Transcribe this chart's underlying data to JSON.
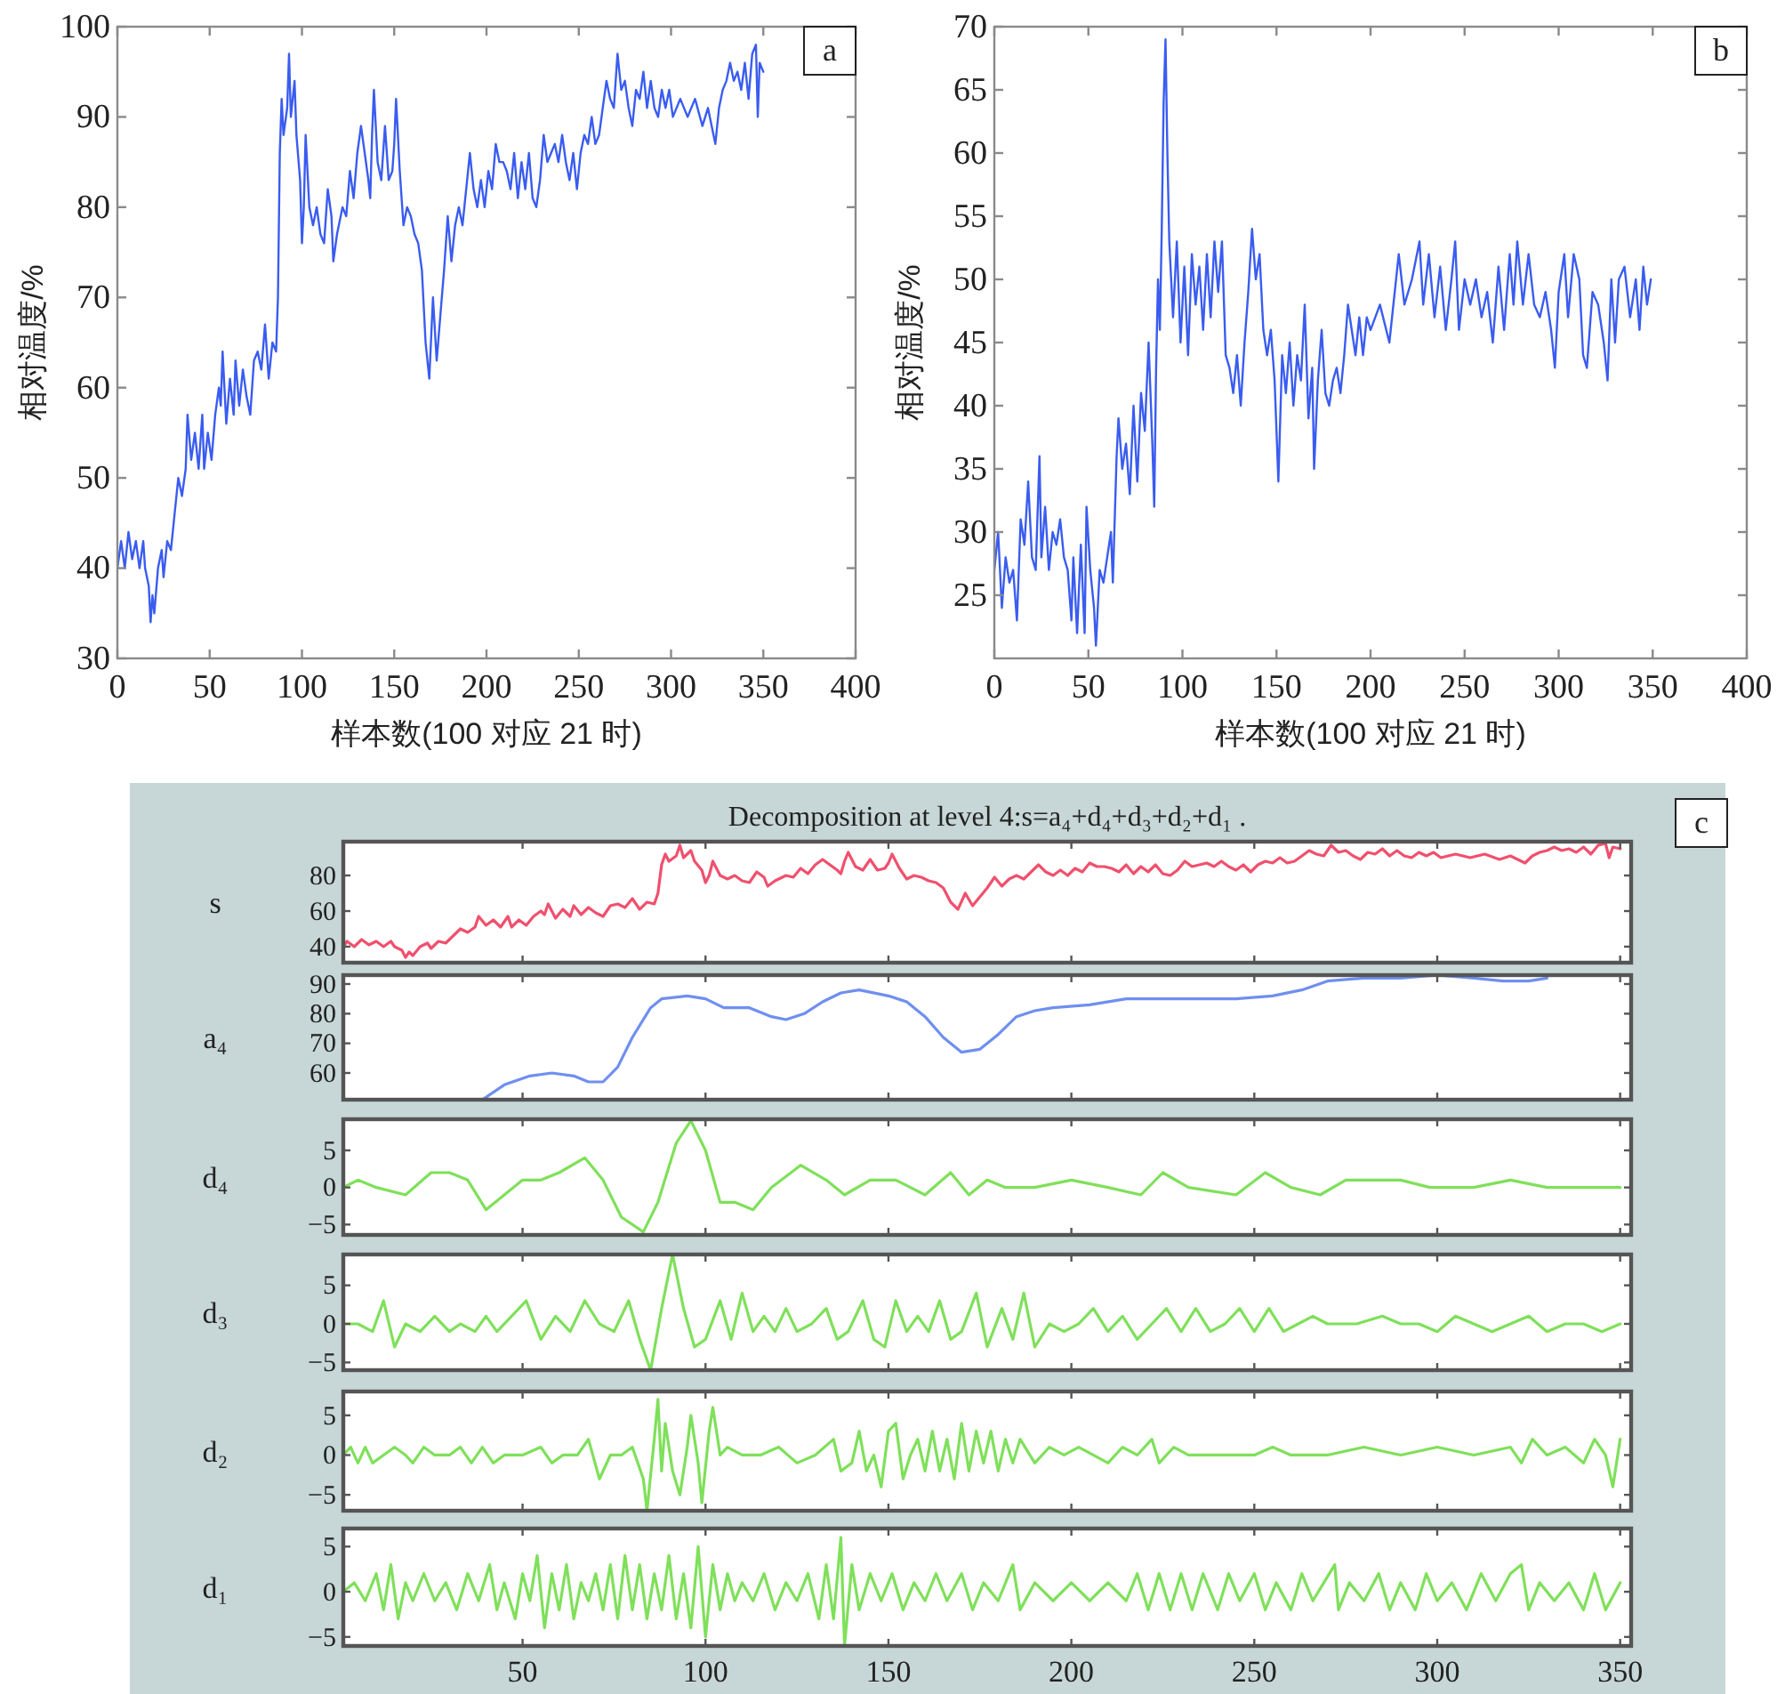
{
  "chart_data": [
    {
      "type": "line",
      "xlabel": "样本数(100 对应 21 时)",
      "ylabel": "相对温度/%",
      "annotations": [
        "a"
      ],
      "xlim": [
        0,
        400
      ],
      "ylim": [
        30,
        100
      ],
      "xticks": [
        0,
        50,
        100,
        150,
        200,
        250,
        300,
        350,
        400
      ],
      "yticks": [
        30,
        40,
        50,
        60,
        70,
        80,
        90,
        100
      ],
      "series": [
        {
          "color": "#3a5cf0",
          "x": [
            0,
            2,
            4,
            6,
            8,
            10,
            12,
            14,
            15,
            17,
            18,
            19,
            20,
            22,
            24,
            25,
            27,
            29,
            31,
            33,
            35,
            37,
            38,
            40,
            42,
            44,
            46,
            47,
            49,
            51,
            53,
            55,
            56,
            57,
            59,
            61,
            63,
            64,
            66,
            68,
            70,
            72,
            74,
            76,
            78,
            80,
            82,
            84,
            86,
            87,
            88,
            89,
            90,
            92,
            93,
            94,
            96,
            97,
            99,
            100,
            101,
            102,
            104,
            106,
            108,
            110,
            112,
            114,
            116,
            117,
            119,
            122,
            124,
            126,
            128,
            130,
            132,
            134,
            136,
            137,
            138,
            139,
            141,
            143,
            145,
            147,
            149,
            150,
            151,
            153,
            155,
            157,
            159,
            161,
            163,
            165,
            167,
            169,
            171,
            173,
            175,
            177,
            179,
            181,
            183,
            185,
            187,
            189,
            191,
            193,
            195,
            197,
            199,
            201,
            203,
            205,
            207,
            209,
            211,
            213,
            215,
            217,
            219,
            221,
            223,
            225,
            227,
            229,
            231,
            233,
            235,
            237,
            239,
            241,
            243,
            245,
            247,
            249,
            251,
            253,
            255,
            257,
            259,
            261,
            263,
            265,
            267,
            269,
            271,
            273,
            275,
            277,
            279,
            281,
            283,
            285,
            287,
            289,
            291,
            293,
            295,
            297,
            299,
            301,
            305,
            309,
            313,
            317,
            320,
            322,
            324,
            326,
            328,
            330,
            332,
            334,
            336,
            338,
            340,
            342,
            344,
            346,
            347,
            348,
            350
          ],
          "values": [
            40,
            43,
            40,
            44,
            41,
            43,
            40,
            43,
            40,
            38,
            34,
            37,
            35,
            40,
            42,
            39,
            43,
            42,
            46,
            50,
            48,
            51,
            57,
            52,
            55,
            51,
            57,
            51,
            55,
            52,
            57,
            60,
            58,
            64,
            56,
            61,
            57,
            63,
            58,
            62,
            59,
            57,
            63,
            64,
            62,
            67,
            61,
            65,
            64,
            70,
            86,
            92,
            88,
            91,
            97,
            90,
            94,
            88,
            83,
            76,
            80,
            88,
            80,
            78,
            80,
            77,
            76,
            82,
            79,
            74,
            77,
            80,
            79,
            84,
            81,
            86,
            89,
            86,
            83,
            81,
            88,
            93,
            85,
            83,
            89,
            83,
            84,
            87,
            92,
            84,
            78,
            80,
            79,
            77,
            76,
            73,
            65,
            61,
            70,
            63,
            68,
            73,
            79,
            74,
            78,
            80,
            78,
            82,
            86,
            82,
            80,
            83,
            80,
            84,
            82,
            87,
            85,
            85,
            84,
            82,
            86,
            81,
            85,
            82,
            86,
            81,
            80,
            83,
            88,
            85,
            86,
            87,
            85,
            88,
            85,
            83,
            86,
            82,
            86,
            88,
            87,
            90,
            87,
            88,
            91,
            94,
            92,
            91,
            97,
            93,
            94,
            91,
            89,
            93,
            92,
            95,
            91,
            94,
            91,
            90,
            93,
            91,
            93,
            90,
            92,
            90,
            92,
            89,
            91,
            89,
            87,
            91,
            93,
            94,
            96,
            94,
            95,
            93,
            96,
            92,
            97,
            98,
            90,
            96,
            95
          ]
        }
      ]
    },
    {
      "type": "line",
      "xlabel": "样本数(100 对应 21 时)",
      "ylabel": "相对温度/%",
      "annotations": [
        "b"
      ],
      "xlim": [
        0,
        400
      ],
      "ylim": [
        20,
        70
      ],
      "xticks": [
        0,
        50,
        100,
        150,
        200,
        250,
        300,
        350,
        400
      ],
      "yticks": [
        25,
        30,
        35,
        40,
        45,
        50,
        55,
        60,
        65,
        70
      ],
      "series": [
        {
          "color": "#3a5cf0",
          "x": [
            0,
            2,
            4,
            6,
            8,
            10,
            12,
            14,
            16,
            18,
            20,
            22,
            24,
            25,
            27,
            29,
            31,
            33,
            35,
            37,
            39,
            41,
            42,
            44,
            46,
            48,
            49,
            51,
            53,
            54,
            56,
            58,
            60,
            62,
            63,
            65,
            66,
            68,
            70,
            72,
            74,
            76,
            78,
            80,
            82,
            84,
            85,
            86,
            87,
            88,
            89,
            90,
            91,
            92,
            93,
            95,
            97,
            99,
            101,
            103,
            105,
            107,
            109,
            111,
            113,
            115,
            117,
            119,
            121,
            123,
            125,
            127,
            129,
            131,
            133,
            135,
            137,
            139,
            141,
            143,
            145,
            147,
            149,
            151,
            153,
            155,
            157,
            159,
            161,
            163,
            165,
            167,
            169,
            170,
            172,
            174,
            176,
            178,
            180,
            182,
            184,
            186,
            188,
            190,
            192,
            194,
            196,
            198,
            200,
            205,
            210,
            215,
            218,
            222,
            226,
            228,
            231,
            234,
            237,
            240,
            243,
            245,
            247,
            250,
            253,
            256,
            259,
            262,
            265,
            268,
            271,
            274,
            276,
            278,
            281,
            284,
            287,
            290,
            293,
            296,
            298,
            300,
            303,
            305,
            308,
            311,
            313,
            315,
            318,
            321,
            324,
            326,
            328,
            330,
            332,
            335,
            338,
            341,
            343,
            345,
            347,
            349
          ],
          "values": [
            27,
            30,
            24,
            28,
            26,
            27,
            23,
            31,
            29,
            34,
            28,
            27,
            36,
            28,
            32,
            27,
            30,
            29,
            31,
            28,
            27,
            23,
            28,
            22,
            29,
            22,
            32,
            27,
            24,
            21,
            27,
            26,
            28,
            30,
            26,
            36,
            39,
            35,
            37,
            33,
            40,
            34,
            41,
            38,
            45,
            37,
            32,
            43,
            50,
            46,
            54,
            64,
            69,
            60,
            53,
            47,
            53,
            45,
            51,
            44,
            52,
            48,
            51,
            46,
            52,
            47,
            53,
            49,
            53,
            44,
            43,
            41,
            44,
            40,
            45,
            49,
            54,
            50,
            52,
            46,
            44,
            46,
            42,
            34,
            44,
            41,
            45,
            40,
            44,
            42,
            48,
            39,
            43,
            35,
            42,
            46,
            41,
            40,
            42,
            43,
            41,
            44,
            48,
            46,
            44,
            47,
            44,
            47,
            46,
            48,
            45,
            52,
            48,
            50,
            53,
            48,
            52,
            47,
            51,
            46,
            50,
            53,
            46,
            50,
            48,
            50,
            47,
            49,
            45,
            51,
            46,
            52,
            48,
            53,
            48,
            52,
            48,
            47,
            49,
            46,
            43,
            49,
            52,
            47,
            52,
            50,
            44,
            43,
            49,
            48,
            45,
            42,
            50,
            45,
            50,
            51,
            47,
            50,
            46,
            51,
            48,
            50
          ]
        }
      ]
    },
    {
      "type": "line",
      "title": "Decomposition at level 4:s=a₄+d₄+d₃+d₂+d₁ .",
      "ylabel": "s",
      "annotations": [
        "c"
      ],
      "tick_labels": "y",
      "xlim": [
        1,
        353
      ],
      "ylim": [
        31,
        99
      ],
      "xticks": [
        50,
        100,
        150,
        200,
        250,
        300,
        350
      ],
      "yticks": [
        40,
        60,
        80
      ],
      "series": [
        {
          "color": "#f0506e",
          "x": [
            1,
            2,
            4,
            6,
            8,
            10,
            12,
            14,
            15,
            17,
            18,
            19,
            20,
            22,
            24,
            25,
            27,
            29,
            31,
            33,
            35,
            37,
            38,
            40,
            42,
            44,
            46,
            47,
            49,
            51,
            53,
            55,
            56,
            57,
            59,
            61,
            63,
            64,
            66,
            68,
            70,
            72,
            74,
            76,
            78,
            80,
            82,
            84,
            86,
            87,
            88,
            89,
            90,
            92,
            93,
            94,
            96,
            97,
            99,
            100,
            101,
            102,
            104,
            106,
            108,
            110,
            112,
            114,
            116,
            117,
            119,
            122,
            124,
            126,
            128,
            130,
            132,
            134,
            136,
            137,
            138,
            139,
            141,
            143,
            145,
            147,
            149,
            150,
            151,
            153,
            155,
            157,
            159,
            161,
            163,
            165,
            167,
            169,
            171,
            173,
            175,
            177,
            179,
            181,
            183,
            185,
            187,
            189,
            191,
            193,
            195,
            197,
            199,
            201,
            203,
            205,
            207,
            209,
            211,
            213,
            215,
            217,
            219,
            221,
            223,
            225,
            227,
            229,
            231,
            233,
            235,
            237,
            239,
            241,
            243,
            245,
            247,
            249,
            251,
            253,
            255,
            257,
            259,
            261,
            263,
            265,
            267,
            269,
            271,
            273,
            275,
            277,
            279,
            281,
            283,
            285,
            287,
            289,
            291,
            293,
            295,
            297,
            299,
            301,
            305,
            309,
            313,
            317,
            320,
            322,
            324,
            326,
            328,
            330,
            332,
            334,
            336,
            338,
            340,
            342,
            344,
            346,
            347,
            348,
            350
          ],
          "values": [
            40,
            43,
            40,
            44,
            41,
            43,
            40,
            43,
            40,
            38,
            34,
            37,
            35,
            40,
            42,
            39,
            43,
            42,
            46,
            50,
            48,
            51,
            57,
            52,
            55,
            51,
            57,
            51,
            55,
            52,
            57,
            60,
            58,
            64,
            56,
            61,
            57,
            63,
            58,
            62,
            59,
            57,
            63,
            64,
            62,
            67,
            61,
            65,
            64,
            70,
            86,
            92,
            88,
            91,
            97,
            90,
            94,
            88,
            83,
            76,
            80,
            88,
            80,
            78,
            80,
            77,
            76,
            82,
            79,
            74,
            77,
            80,
            79,
            84,
            81,
            86,
            89,
            86,
            83,
            81,
            88,
            93,
            85,
            83,
            89,
            83,
            84,
            87,
            92,
            84,
            78,
            80,
            79,
            77,
            76,
            73,
            65,
            61,
            70,
            63,
            68,
            73,
            79,
            74,
            78,
            80,
            78,
            82,
            86,
            82,
            80,
            83,
            80,
            84,
            82,
            87,
            85,
            85,
            84,
            82,
            86,
            81,
            85,
            82,
            86,
            81,
            80,
            83,
            88,
            85,
            86,
            87,
            85,
            88,
            85,
            83,
            86,
            82,
            86,
            88,
            87,
            90,
            87,
            88,
            91,
            94,
            92,
            91,
            97,
            93,
            94,
            91,
            89,
            93,
            92,
            95,
            91,
            94,
            91,
            90,
            93,
            91,
            93,
            90,
            92,
            90,
            92,
            89,
            91,
            89,
            87,
            91,
            93,
            94,
            96,
            94,
            95,
            93,
            96,
            92,
            97,
            98,
            90,
            96,
            95
          ]
        }
      ]
    },
    {
      "type": "line",
      "ylabel": "a₄",
      "tick_labels": "y",
      "xlim": [
        1,
        353
      ],
      "ylim": [
        51,
        93
      ],
      "xticks": [
        50,
        100,
        150,
        200,
        250,
        300,
        350
      ],
      "yticks": [
        60,
        70,
        80,
        90
      ],
      "series": [
        {
          "color": "#6f8ff0",
          "x": [
            39,
            45,
            52,
            58,
            64,
            68,
            72,
            76,
            80,
            85,
            88,
            95,
            100,
            105,
            112,
            118,
            122,
            127,
            132,
            137,
            142,
            150,
            155,
            160,
            165,
            170,
            175,
            180,
            185,
            190,
            195,
            205,
            215,
            230,
            245,
            255,
            263,
            270,
            280,
            290,
            300,
            310,
            318,
            325,
            330
          ],
          "values": [
            51,
            56,
            59,
            60,
            59,
            57,
            57,
            62,
            72,
            82,
            85,
            86,
            85,
            82,
            82,
            79,
            78,
            80,
            84,
            87,
            88,
            86,
            84,
            79,
            72,
            67,
            68,
            73,
            79,
            81,
            82,
            83,
            85,
            85,
            85,
            86,
            88,
            91,
            92,
            92,
            93,
            92,
            91,
            91,
            92
          ]
        }
      ]
    },
    {
      "type": "line",
      "ylabel": "d₄",
      "tick_labels": "y",
      "xlim": [
        1,
        353
      ],
      "ylim": [
        -6.4,
        9.2
      ],
      "xticks": [
        50,
        100,
        150,
        200,
        250,
        300,
        350
      ],
      "yticks": [
        -5,
        0,
        5
      ],
      "series": [
        {
          "color": "#7fe05a",
          "x": [
            1,
            5,
            10,
            18,
            25,
            30,
            35,
            40,
            45,
            50,
            55,
            60,
            67,
            72,
            77,
            83,
            87,
            92,
            96,
            100,
            104,
            108,
            113,
            118,
            126,
            133,
            138,
            145,
            152,
            160,
            167,
            172,
            177,
            182,
            190,
            200,
            210,
            219,
            225,
            232,
            245,
            253,
            260,
            268,
            275,
            285,
            290,
            298,
            310,
            320,
            330,
            340,
            350
          ],
          "values": [
            0,
            1,
            0,
            -1,
            2,
            2,
            1,
            -3,
            -1,
            1,
            1,
            2,
            4,
            1,
            -4,
            -6,
            -2,
            6,
            9,
            5,
            -2,
            -2,
            -3,
            0,
            3,
            1,
            -1,
            1,
            1,
            -1,
            2,
            -1,
            1,
            0,
            0,
            1,
            0,
            -1,
            2,
            0,
            -1,
            2,
            0,
            -1,
            1,
            1,
            1,
            0,
            0,
            1,
            0,
            0,
            0
          ]
        }
      ]
    },
    {
      "type": "line",
      "ylabel": "d₃",
      "tick_labels": "y",
      "xlim": [
        1,
        353
      ],
      "ylim": [
        -6,
        9
      ],
      "xticks": [
        50,
        100,
        150,
        200,
        250,
        300,
        350
      ],
      "yticks": [
        -5,
        0,
        5
      ],
      "series": [
        {
          "color": "#7fe05a",
          "x": [
            1,
            5,
            9,
            12,
            15,
            18,
            22,
            26,
            30,
            33,
            37,
            40,
            43,
            47,
            51,
            55,
            59,
            63,
            67,
            71,
            75,
            79,
            82,
            85,
            88,
            91,
            94,
            97,
            100,
            104,
            107,
            110,
            113,
            116,
            119,
            122,
            125,
            129,
            133,
            136,
            139,
            143,
            146,
            149,
            152,
            155,
            158,
            161,
            164,
            167,
            170,
            174,
            177,
            181,
            184,
            187,
            190,
            194,
            198,
            202,
            206,
            210,
            214,
            218,
            222,
            226,
            230,
            234,
            238,
            242,
            246,
            250,
            254,
            258,
            262,
            266,
            270,
            278,
            285,
            290,
            295,
            300,
            305,
            310,
            315,
            320,
            325,
            330,
            335,
            340,
            345,
            350
          ],
          "values": [
            0,
            0,
            -1,
            3,
            -3,
            0,
            -1,
            1,
            -1,
            0,
            -1,
            1,
            -1,
            1,
            3,
            -2,
            1,
            -1,
            3,
            0,
            -1,
            3,
            -2,
            -6,
            2,
            9,
            2,
            -3,
            -2,
            3,
            -2,
            4,
            -1,
            1,
            -1,
            2,
            -1,
            0,
            2,
            -2,
            -1,
            3,
            -2,
            -3,
            3,
            -1,
            1,
            -1,
            3,
            -2,
            -1,
            4,
            -3,
            2,
            -2,
            4,
            -3,
            0,
            -1,
            0,
            2,
            -1,
            1,
            -2,
            0,
            2,
            -1,
            2,
            -1,
            0,
            2,
            -1,
            2,
            -1,
            0,
            1,
            0,
            0,
            1,
            0,
            0,
            -1,
            1,
            0,
            -1,
            0,
            1,
            -1,
            0,
            0,
            -1,
            0
          ]
        }
      ]
    },
    {
      "type": "line",
      "ylabel": "d₂",
      "tick_labels": "y",
      "xlim": [
        1,
        353
      ],
      "ylim": [
        -7,
        8
      ],
      "xticks": [
        50,
        100,
        150,
        200,
        250,
        300,
        350
      ],
      "yticks": [
        -5,
        0,
        5
      ],
      "series": [
        {
          "color": "#7fe05a",
          "x": [
            1,
            3,
            5,
            7,
            9,
            12,
            15,
            18,
            20,
            23,
            26,
            30,
            33,
            36,
            39,
            42,
            45,
            50,
            55,
            58,
            61,
            65,
            68,
            71,
            74,
            77,
            80,
            83,
            84,
            86,
            87,
            88,
            89,
            91,
            93,
            95,
            96,
            98,
            99,
            101,
            102,
            104,
            106,
            110,
            115,
            120,
            125,
            130,
            135,
            137,
            140,
            142,
            144,
            146,
            148,
            150,
            152,
            154,
            156,
            158,
            160,
            162,
            164,
            166,
            168,
            170,
            172,
            174,
            176,
            178,
            180,
            182,
            184,
            186,
            190,
            194,
            198,
            202,
            206,
            210,
            214,
            218,
            222,
            224,
            228,
            232,
            240,
            250,
            255,
            260,
            270,
            280,
            290,
            300,
            310,
            320,
            323,
            326,
            330,
            335,
            340,
            343,
            346,
            348,
            350
          ],
          "values": [
            0,
            1,
            -1,
            1,
            -1,
            0,
            1,
            0,
            -1,
            1,
            0,
            0,
            1,
            -1,
            1,
            -1,
            0,
            0,
            1,
            -1,
            0,
            0,
            2,
            -3,
            0,
            0,
            1,
            -3,
            -7,
            2,
            7,
            -2,
            4,
            -2,
            -5,
            1,
            5,
            -1,
            -6,
            3,
            6,
            0,
            1,
            0,
            0,
            1,
            -1,
            0,
            2,
            -2,
            -1,
            3,
            -2,
            0,
            -4,
            3,
            4,
            -3,
            0,
            2,
            -2,
            3,
            -2,
            2,
            -3,
            4,
            -2,
            3,
            -1,
            3,
            -2,
            2,
            -1,
            2,
            -1,
            1,
            0,
            1,
            0,
            -1,
            1,
            0,
            2,
            -1,
            1,
            0,
            0,
            0,
            1,
            0,
            0,
            1,
            0,
            1,
            0,
            1,
            -1,
            2,
            0,
            1,
            -1,
            2,
            0,
            -4,
            2
          ]
        }
      ]
    },
    {
      "type": "line",
      "ylabel": "d₁",
      "xlim": [
        1,
        353
      ],
      "ylim": [
        -6,
        7
      ],
      "xticks": [
        50,
        100,
        150,
        200,
        250,
        300,
        350
      ],
      "yticks": [
        -5,
        0,
        5
      ],
      "series": [
        {
          "color": "#7fe05a",
          "x": [
            1,
            4,
            7,
            10,
            12,
            14,
            16,
            18,
            20,
            23,
            26,
            29,
            32,
            35,
            38,
            41,
            43,
            45,
            48,
            50,
            52,
            54,
            56,
            58,
            60,
            62,
            64,
            66,
            68,
            70,
            72,
            74,
            76,
            78,
            80,
            82,
            84,
            86,
            88,
            90,
            92,
            94,
            96,
            98,
            100,
            102,
            104,
            106,
            108,
            110,
            113,
            116,
            119,
            122,
            125,
            128,
            131,
            133,
            135,
            137,
            138,
            140,
            142,
            145,
            148,
            151,
            154,
            157,
            160,
            163,
            166,
            170,
            173,
            176,
            180,
            184,
            186,
            190,
            195,
            200,
            205,
            210,
            215,
            218,
            221,
            224,
            227,
            230,
            233,
            236,
            240,
            243,
            246,
            250,
            253,
            256,
            260,
            263,
            266,
            269,
            272,
            273,
            276,
            280,
            284,
            287,
            290,
            294,
            297,
            300,
            304,
            308,
            312,
            316,
            320,
            323,
            325,
            328,
            332,
            336,
            340,
            343,
            346,
            350
          ],
          "values": [
            0,
            1,
            -1,
            2,
            -2,
            3,
            -3,
            1,
            -1,
            2,
            -1,
            1,
            -2,
            2,
            -1,
            3,
            -2,
            1,
            -3,
            2,
            -1,
            4,
            -4,
            2,
            -2,
            3,
            -3,
            1,
            -1,
            2,
            -2,
            3,
            -3,
            4,
            -2,
            3,
            -3,
            2,
            -2,
            4,
            -3,
            2,
            -4,
            5,
            -5,
            3,
            -2,
            2,
            -1,
            1,
            -1,
            2,
            -2,
            1,
            -1,
            2,
            -3,
            3,
            -3,
            6,
            -6,
            3,
            -2,
            2,
            -1,
            2,
            -2,
            1,
            -1,
            2,
            -1,
            2,
            -2,
            1,
            -1,
            3,
            -2,
            1,
            -1,
            1,
            -1,
            1,
            -1,
            2,
            -2,
            2,
            -2,
            2,
            -2,
            2,
            -2,
            2,
            -1,
            2,
            -2,
            1,
            -2,
            2,
            -1,
            1,
            3,
            -2,
            1,
            -1,
            2,
            -2,
            1,
            -2,
            2,
            -1,
            1,
            -2,
            2,
            -1,
            2,
            3,
            -2,
            1,
            -1,
            1,
            -2,
            2,
            -2,
            1
          ]
        }
      ]
    }
  ]
}
